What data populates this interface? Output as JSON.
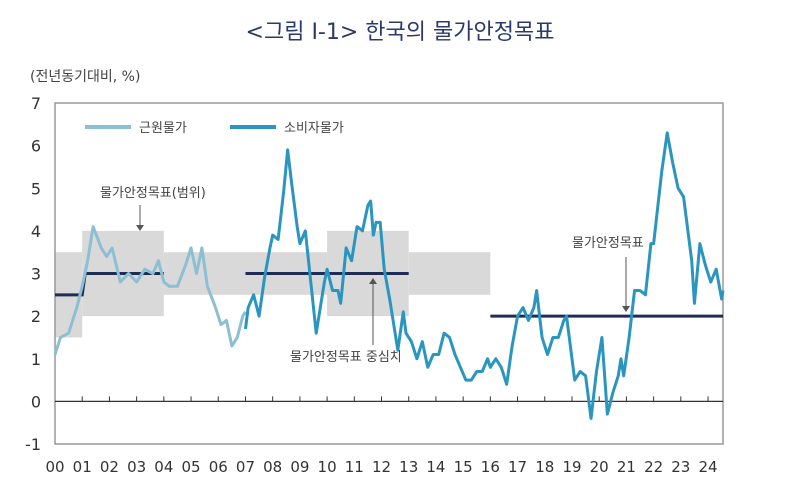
{
  "chart_data": {
    "type": "line",
    "title": "<그림 Ⅰ-1> 한국의 물가안정목표",
    "ylabel": "(전년동기대비, %)",
    "xlim": [
      2000,
      2024.55
    ],
    "ylim": [
      -1,
      7
    ],
    "yticks": [
      -1,
      0,
      1,
      2,
      3,
      4,
      5,
      6,
      7
    ],
    "xticks": [
      "00",
      "01",
      "02",
      "03",
      "04",
      "05",
      "06",
      "07",
      "08",
      "09",
      "10",
      "11",
      "12",
      "13",
      "14",
      "15",
      "16",
      "17",
      "18",
      "19",
      "20",
      "21",
      "22",
      "23",
      "24"
    ],
    "grid": false,
    "legend_position": "top-left",
    "colors": {
      "core": "#8dbfd3",
      "cpi": "#2a95bf",
      "target_line": "#1f2d55",
      "target_band": "#d9d9d9",
      "title": "#2b3a6b"
    },
    "series": [
      {
        "name": "근원물가",
        "points": [
          [
            2000.0,
            1.1
          ],
          [
            2000.2,
            1.5
          ],
          [
            2000.5,
            1.6
          ],
          [
            2000.8,
            2.2
          ],
          [
            2001.0,
            2.7
          ],
          [
            2001.2,
            3.3
          ],
          [
            2001.4,
            4.1
          ],
          [
            2001.7,
            3.6
          ],
          [
            2001.9,
            3.4
          ],
          [
            2002.1,
            3.6
          ],
          [
            2002.4,
            2.8
          ],
          [
            2002.7,
            3.0
          ],
          [
            2003.0,
            2.8
          ],
          [
            2003.3,
            3.1
          ],
          [
            2003.6,
            3.0
          ],
          [
            2003.8,
            3.3
          ],
          [
            2004.0,
            2.8
          ],
          [
            2004.2,
            2.7
          ],
          [
            2004.5,
            2.7
          ],
          [
            2004.8,
            3.2
          ],
          [
            2005.0,
            3.6
          ],
          [
            2005.2,
            3.0
          ],
          [
            2005.4,
            3.6
          ],
          [
            2005.6,
            2.7
          ],
          [
            2005.9,
            2.2
          ],
          [
            2006.1,
            1.8
          ],
          [
            2006.3,
            1.9
          ],
          [
            2006.5,
            1.3
          ],
          [
            2006.7,
            1.5
          ],
          [
            2006.9,
            2.0
          ],
          [
            2007.0,
            2.1
          ]
        ]
      },
      {
        "name": "소비자물가",
        "points": [
          [
            2007.0,
            1.7
          ],
          [
            2007.1,
            2.2
          ],
          [
            2007.3,
            2.5
          ],
          [
            2007.5,
            2.0
          ],
          [
            2007.7,
            2.9
          ],
          [
            2007.9,
            3.6
          ],
          [
            2008.0,
            3.9
          ],
          [
            2008.2,
            3.8
          ],
          [
            2008.4,
            4.9
          ],
          [
            2008.55,
            5.9
          ],
          [
            2008.7,
            5.1
          ],
          [
            2008.9,
            4.1
          ],
          [
            2009.0,
            3.7
          ],
          [
            2009.2,
            4.0
          ],
          [
            2009.4,
            2.8
          ],
          [
            2009.6,
            1.6
          ],
          [
            2009.75,
            2.2
          ],
          [
            2009.9,
            2.8
          ],
          [
            2010.0,
            3.1
          ],
          [
            2010.2,
            2.6
          ],
          [
            2010.4,
            2.6
          ],
          [
            2010.5,
            2.3
          ],
          [
            2010.7,
            3.6
          ],
          [
            2010.9,
            3.3
          ],
          [
            2011.1,
            4.1
          ],
          [
            2011.3,
            4.0
          ],
          [
            2011.5,
            4.6
          ],
          [
            2011.6,
            4.7
          ],
          [
            2011.7,
            3.9
          ],
          [
            2011.8,
            4.2
          ],
          [
            2011.95,
            4.2
          ],
          [
            2012.1,
            3.1
          ],
          [
            2012.3,
            2.4
          ],
          [
            2012.5,
            1.6
          ],
          [
            2012.6,
            1.2
          ],
          [
            2012.8,
            2.1
          ],
          [
            2012.9,
            1.6
          ],
          [
            2013.1,
            1.4
          ],
          [
            2013.3,
            1.0
          ],
          [
            2013.5,
            1.4
          ],
          [
            2013.7,
            0.8
          ],
          [
            2013.9,
            1.1
          ],
          [
            2014.1,
            1.1
          ],
          [
            2014.3,
            1.6
          ],
          [
            2014.5,
            1.5
          ],
          [
            2014.7,
            1.1
          ],
          [
            2014.9,
            0.8
          ],
          [
            2015.1,
            0.5
          ],
          [
            2015.3,
            0.5
          ],
          [
            2015.5,
            0.7
          ],
          [
            2015.7,
            0.7
          ],
          [
            2015.9,
            1.0
          ],
          [
            2016.0,
            0.8
          ],
          [
            2016.2,
            1.0
          ],
          [
            2016.4,
            0.8
          ],
          [
            2016.6,
            0.4
          ],
          [
            2016.8,
            1.3
          ],
          [
            2017.0,
            2.0
          ],
          [
            2017.2,
            2.2
          ],
          [
            2017.4,
            1.9
          ],
          [
            2017.6,
            2.2
          ],
          [
            2017.7,
            2.6
          ],
          [
            2017.9,
            1.5
          ],
          [
            2018.1,
            1.1
          ],
          [
            2018.3,
            1.5
          ],
          [
            2018.5,
            1.5
          ],
          [
            2018.7,
            1.9
          ],
          [
            2018.8,
            2.0
          ],
          [
            2018.9,
            1.5
          ],
          [
            2019.1,
            0.5
          ],
          [
            2019.3,
            0.7
          ],
          [
            2019.5,
            0.6
          ],
          [
            2019.7,
            -0.4
          ],
          [
            2019.9,
            0.7
          ],
          [
            2020.1,
            1.5
          ],
          [
            2020.3,
            -0.3
          ],
          [
            2020.5,
            0.2
          ],
          [
            2020.7,
            0.6
          ],
          [
            2020.8,
            1.0
          ],
          [
            2020.9,
            0.6
          ],
          [
            2021.1,
            1.5
          ],
          [
            2021.3,
            2.6
          ],
          [
            2021.5,
            2.6
          ],
          [
            2021.7,
            2.5
          ],
          [
            2021.9,
            3.7
          ],
          [
            2022.0,
            3.7
          ],
          [
            2022.3,
            5.4
          ],
          [
            2022.5,
            6.3
          ],
          [
            2022.7,
            5.6
          ],
          [
            2022.9,
            5.0
          ],
          [
            2023.1,
            4.8
          ],
          [
            2023.4,
            3.3
          ],
          [
            2023.5,
            2.3
          ],
          [
            2023.7,
            3.7
          ],
          [
            2023.9,
            3.2
          ],
          [
            2024.1,
            2.8
          ],
          [
            2024.3,
            3.1
          ],
          [
            2024.5,
            2.4
          ],
          [
            2024.55,
            2.6
          ]
        ]
      }
    ],
    "target_bands": [
      [
        2000,
        2001,
        1.5,
        3.5
      ],
      [
        2001,
        2004,
        2,
        4
      ],
      [
        2004,
        2007,
        2.5,
        3.5
      ],
      [
        2007,
        2010,
        2.5,
        3.5
      ],
      [
        2010,
        2013,
        2,
        4
      ],
      [
        2013,
        2016,
        2.5,
        3.5
      ]
    ],
    "target_lines": [
      [
        2000,
        2001,
        2.5
      ],
      [
        2001,
        2004,
        3
      ],
      [
        2007,
        2013,
        3
      ],
      [
        2016,
        2024.55,
        2
      ]
    ],
    "annotations": {
      "range": "물가안정목표(범위)",
      "center": "물가안정목표 중심치",
      "target": "물가안정목표"
    }
  }
}
